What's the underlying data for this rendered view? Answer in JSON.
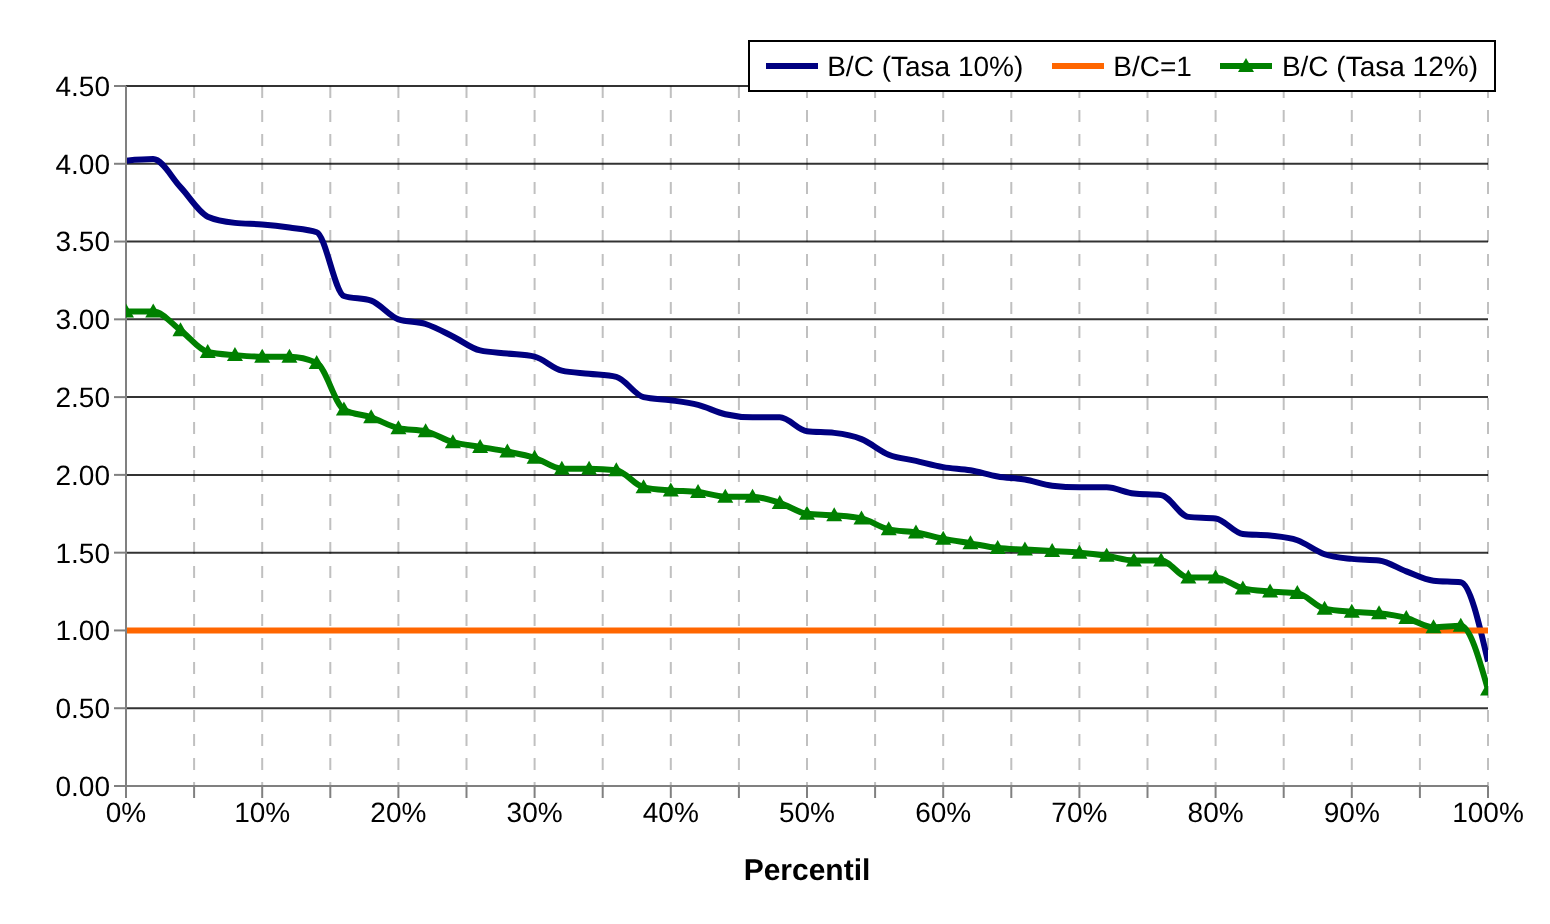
{
  "chart_data": {
    "type": "line",
    "xlabel": "Percentil",
    "xlim": [
      0,
      100
    ],
    "xticks": [
      {
        "value": 0,
        "label": "0%"
      },
      {
        "value": 5,
        "label": null
      },
      {
        "value": 10,
        "label": "10%"
      },
      {
        "value": 15,
        "label": null
      },
      {
        "value": 20,
        "label": "20%"
      },
      {
        "value": 25,
        "label": null
      },
      {
        "value": 30,
        "label": "30%"
      },
      {
        "value": 35,
        "label": null
      },
      {
        "value": 40,
        "label": "40%"
      },
      {
        "value": 45,
        "label": null
      },
      {
        "value": 50,
        "label": "50%"
      },
      {
        "value": 55,
        "label": null
      },
      {
        "value": 60,
        "label": "60%"
      },
      {
        "value": 65,
        "label": null
      },
      {
        "value": 70,
        "label": "70%"
      },
      {
        "value": 75,
        "label": null
      },
      {
        "value": 80,
        "label": "80%"
      },
      {
        "value": 85,
        "label": null
      },
      {
        "value": 90,
        "label": "90%"
      },
      {
        "value": 95,
        "label": null
      },
      {
        "value": 100,
        "label": "100%"
      }
    ],
    "ylim": [
      0,
      4.5
    ],
    "yticks": [
      {
        "value": 0,
        "label": "0.00"
      },
      {
        "value": 0.5,
        "label": "0.50"
      },
      {
        "value": 1,
        "label": "1.00"
      },
      {
        "value": 1.5,
        "label": "1.50"
      },
      {
        "value": 2,
        "label": "2.00"
      },
      {
        "value": 2.5,
        "label": "2.50"
      },
      {
        "value": 3,
        "label": "3.00"
      },
      {
        "value": 3.5,
        "label": "3.50"
      },
      {
        "value": 4,
        "label": "4.00"
      },
      {
        "value": 4.5,
        "label": "4.50"
      }
    ],
    "grid": true,
    "legend": "top right",
    "series": [
      {
        "name": "B/C (Tasa 10%)",
        "color": "#000080",
        "marker": "none",
        "x": [
          0,
          2,
          4,
          6,
          8,
          10,
          12,
          14,
          16,
          18,
          20,
          22,
          24,
          26,
          28,
          30,
          32,
          34,
          36,
          38,
          40,
          42,
          44,
          46,
          48,
          50,
          52,
          54,
          56,
          58,
          60,
          62,
          64,
          66,
          68,
          70,
          72,
          74,
          76,
          78,
          80,
          82,
          84,
          86,
          88,
          90,
          92,
          94,
          96,
          98,
          100
        ],
        "values": [
          4.02,
          4.03,
          3.85,
          3.66,
          3.62,
          3.61,
          3.59,
          3.56,
          3.15,
          3.12,
          3.0,
          2.97,
          2.89,
          2.8,
          2.78,
          2.76,
          2.67,
          2.65,
          2.63,
          2.5,
          2.48,
          2.45,
          2.39,
          2.37,
          2.37,
          2.28,
          2.27,
          2.23,
          2.13,
          2.09,
          2.05,
          2.03,
          1.99,
          1.97,
          1.93,
          1.92,
          1.92,
          1.88,
          1.87,
          1.73,
          1.72,
          1.62,
          1.61,
          1.58,
          1.49,
          1.46,
          1.45,
          1.38,
          1.32,
          1.31,
          0.8
        ]
      },
      {
        "name": "B/C=1",
        "color": "#ff6600",
        "marker": "none",
        "x": [
          0,
          100
        ],
        "values": [
          1,
          1
        ]
      },
      {
        "name": "B/C (Tasa 12%)",
        "color": "#008000",
        "marker": "triangle",
        "x": [
          0,
          2,
          4,
          6,
          8,
          10,
          12,
          14,
          16,
          18,
          20,
          22,
          24,
          26,
          28,
          30,
          32,
          34,
          36,
          38,
          40,
          42,
          44,
          46,
          48,
          50,
          52,
          54,
          56,
          58,
          60,
          62,
          64,
          66,
          68,
          70,
          72,
          74,
          76,
          78,
          80,
          82,
          84,
          86,
          88,
          90,
          92,
          94,
          96,
          98,
          100
        ],
        "values": [
          3.05,
          3.05,
          2.93,
          2.79,
          2.77,
          2.76,
          2.76,
          2.72,
          2.42,
          2.37,
          2.3,
          2.28,
          2.21,
          2.18,
          2.15,
          2.11,
          2.04,
          2.04,
          2.03,
          1.92,
          1.9,
          1.89,
          1.86,
          1.86,
          1.82,
          1.75,
          1.74,
          1.72,
          1.65,
          1.63,
          1.59,
          1.56,
          1.53,
          1.52,
          1.51,
          1.5,
          1.48,
          1.45,
          1.45,
          1.34,
          1.34,
          1.27,
          1.25,
          1.24,
          1.14,
          1.12,
          1.11,
          1.08,
          1.02,
          1.03,
          0.62
        ]
      }
    ]
  }
}
